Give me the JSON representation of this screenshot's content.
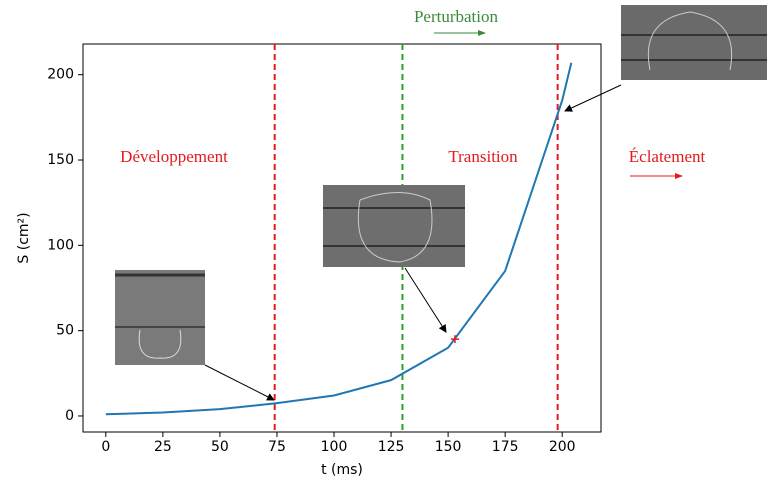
{
  "chart_data": {
    "type": "line",
    "x": [
      0,
      25,
      50,
      75,
      100,
      125,
      150,
      175,
      200,
      204
    ],
    "series": [
      {
        "name": "S",
        "color": "#1f77b4",
        "values": [
          1,
          2,
          4,
          7.5,
          12,
          21,
          40,
          85,
          185,
          207
        ]
      }
    ],
    "xlabel": "t (ms)",
    "ylabel": "S (cm²)",
    "xlim": [
      -10,
      217
    ],
    "ylim": [
      -9.4,
      218
    ],
    "xticks": [
      0,
      25,
      50,
      75,
      100,
      125,
      150,
      175,
      200
    ],
    "yticks": [
      0,
      50,
      100,
      150,
      200
    ],
    "vlines": [
      {
        "x": 74,
        "color": "#e41a1c"
      },
      {
        "x": 130,
        "color": "#2ca02c"
      },
      {
        "x": 198,
        "color": "#e41a1c"
      }
    ],
    "marker": {
      "x": 153,
      "y": 45,
      "color": "#e41a1c"
    },
    "annotations": [
      "Perturbation",
      "Développement",
      "Transition",
      "Éclatement"
    ]
  }
}
